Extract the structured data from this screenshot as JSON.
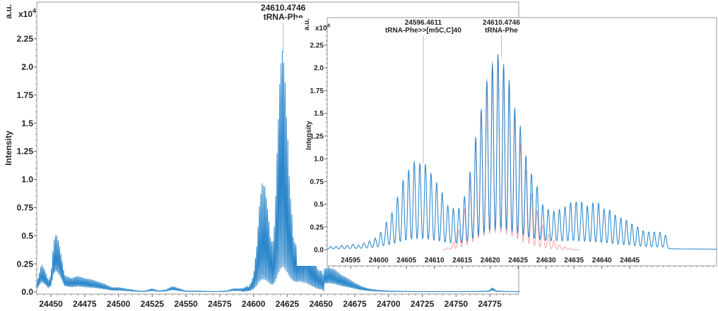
{
  "chart_data": [
    {
      "type": "line",
      "title": "",
      "xlabel": "",
      "ylabel": "Intensity",
      "y_unit": "a.u.",
      "y_multiplier": "x10",
      "y_multiplier_exp": "4",
      "xlim": [
        24439.5,
        24797
      ],
      "ylim": [
        0,
        2.6
      ],
      "x_ticks": [
        "24450",
        "24475",
        "24500",
        "24525",
        "24550",
        "24575",
        "24600",
        "24625",
        "24650",
        "24675",
        "24700",
        "24725",
        "24750",
        "24775"
      ],
      "y_ticks": [
        "0.0",
        "0.25",
        "0.5",
        "0.75",
        "1.0",
        "1.25",
        "1.5",
        "1.75",
        "2.0",
        "2.25"
      ],
      "grid": false,
      "color": "#1f7fc8",
      "annotations": [
        {
          "mass": "24610.4746",
          "label": "tRNA-Phe",
          "x": 24622
        }
      ],
      "envelope": {
        "mass": [
          24440,
          24443,
          24446,
          24448,
          24450,
          24452,
          24454,
          24456,
          24458,
          24460,
          24465,
          24470,
          24475,
          24480,
          24485,
          24490,
          24495,
          24500,
          24505,
          24510,
          24515,
          24520,
          24525,
          24530,
          24535,
          24540,
          24545,
          24550,
          24560,
          24570,
          24580,
          24585,
          24590,
          24652,
          24655,
          24660,
          24665,
          24670,
          24675,
          24680,
          24685,
          24690,
          24700,
          24720,
          24760,
          24774,
          24777,
          24780,
          24790,
          24797
        ],
        "intensity": [
          0.1,
          0.25,
          0.18,
          0.1,
          0.15,
          0.45,
          0.52,
          0.43,
          0.3,
          0.15,
          0.12,
          0.14,
          0.12,
          0.11,
          0.09,
          0.07,
          0.04,
          0.04,
          0.03,
          0.02,
          0.01,
          0.01,
          0.03,
          0.01,
          0.02,
          0.05,
          0.03,
          0.01,
          0.01,
          0.005,
          0.01,
          0.03,
          0.03,
          0.2,
          0.22,
          0.2,
          0.15,
          0.12,
          0.08,
          0.05,
          0.03,
          0.02,
          0.01,
          0.005,
          0.005,
          0.01,
          0.04,
          0.01,
          0.005,
          0.005
        ]
      }
    },
    {
      "type": "line",
      "title": "",
      "xlabel": "",
      "ylabel": "Intensity",
      "y_unit": "a.u.",
      "y_multiplier": "x10",
      "y_multiplier_exp": "4",
      "xlim": [
        24590.8,
        24660.6
      ],
      "ylim": [
        0,
        2.6
      ],
      "x_ticks": [
        "24595",
        "24600",
        "24605",
        "24610",
        "24615",
        "24620",
        "24625",
        "24630",
        "24635",
        "24640",
        "24645"
      ],
      "y_ticks": [
        "0.0",
        "0.25",
        "0.5",
        "0.75",
        "1.0",
        "1.25",
        "1.5",
        "1.75",
        "2.0",
        "2.25"
      ],
      "grid": false,
      "annotations": [
        {
          "mass": "24596.4611",
          "label": "tRNA-Phe>>[m5C,C]40",
          "x": 24608.0
        },
        {
          "mass": "24610.4746",
          "label": "tRNA-Phe",
          "x": 24622.0
        }
      ],
      "series": [
        {
          "color": "#1f7fc8",
          "first_peak_mass": 24591.4,
          "peak_spacing": 1.0,
          "peak_intensity": [
            0.03,
            0.03,
            0.04,
            0.04,
            0.05,
            0.04,
            0.06,
            0.08,
            0.11,
            0.17,
            0.28,
            0.38,
            0.55,
            0.73,
            0.84,
            0.93,
            0.91,
            0.9,
            0.8,
            0.7,
            0.59,
            0.45,
            0.42,
            0.42,
            0.55,
            0.82,
            1.2,
            1.5,
            1.81,
            1.99,
            2.1,
            1.99,
            1.81,
            1.5,
            1.3,
            0.97,
            0.77,
            0.63,
            0.43,
            0.38,
            0.36,
            0.38,
            0.41,
            0.46,
            0.47,
            0.47,
            0.43,
            0.47,
            0.47,
            0.41,
            0.4,
            0.35,
            0.32,
            0.3,
            0.26,
            0.23,
            0.19,
            0.18,
            0.18,
            0.18,
            0.15
          ]
        },
        {
          "color": "#f4a3a8",
          "first_peak_mass": 24612.4,
          "peak_spacing": 1.0,
          "peak_intensity": [
            0.02,
            0.08,
            0.22,
            0.45,
            0.78,
            1.2,
            1.55,
            1.88,
            2.07,
            2.12,
            2.01,
            1.78,
            1.48,
            1.17,
            0.88,
            0.62,
            0.43,
            0.27,
            0.17,
            0.1,
            0.05,
            0.03,
            0.015
          ],
          "range": [
            24611.5,
            24636
          ]
        }
      ]
    }
  ]
}
